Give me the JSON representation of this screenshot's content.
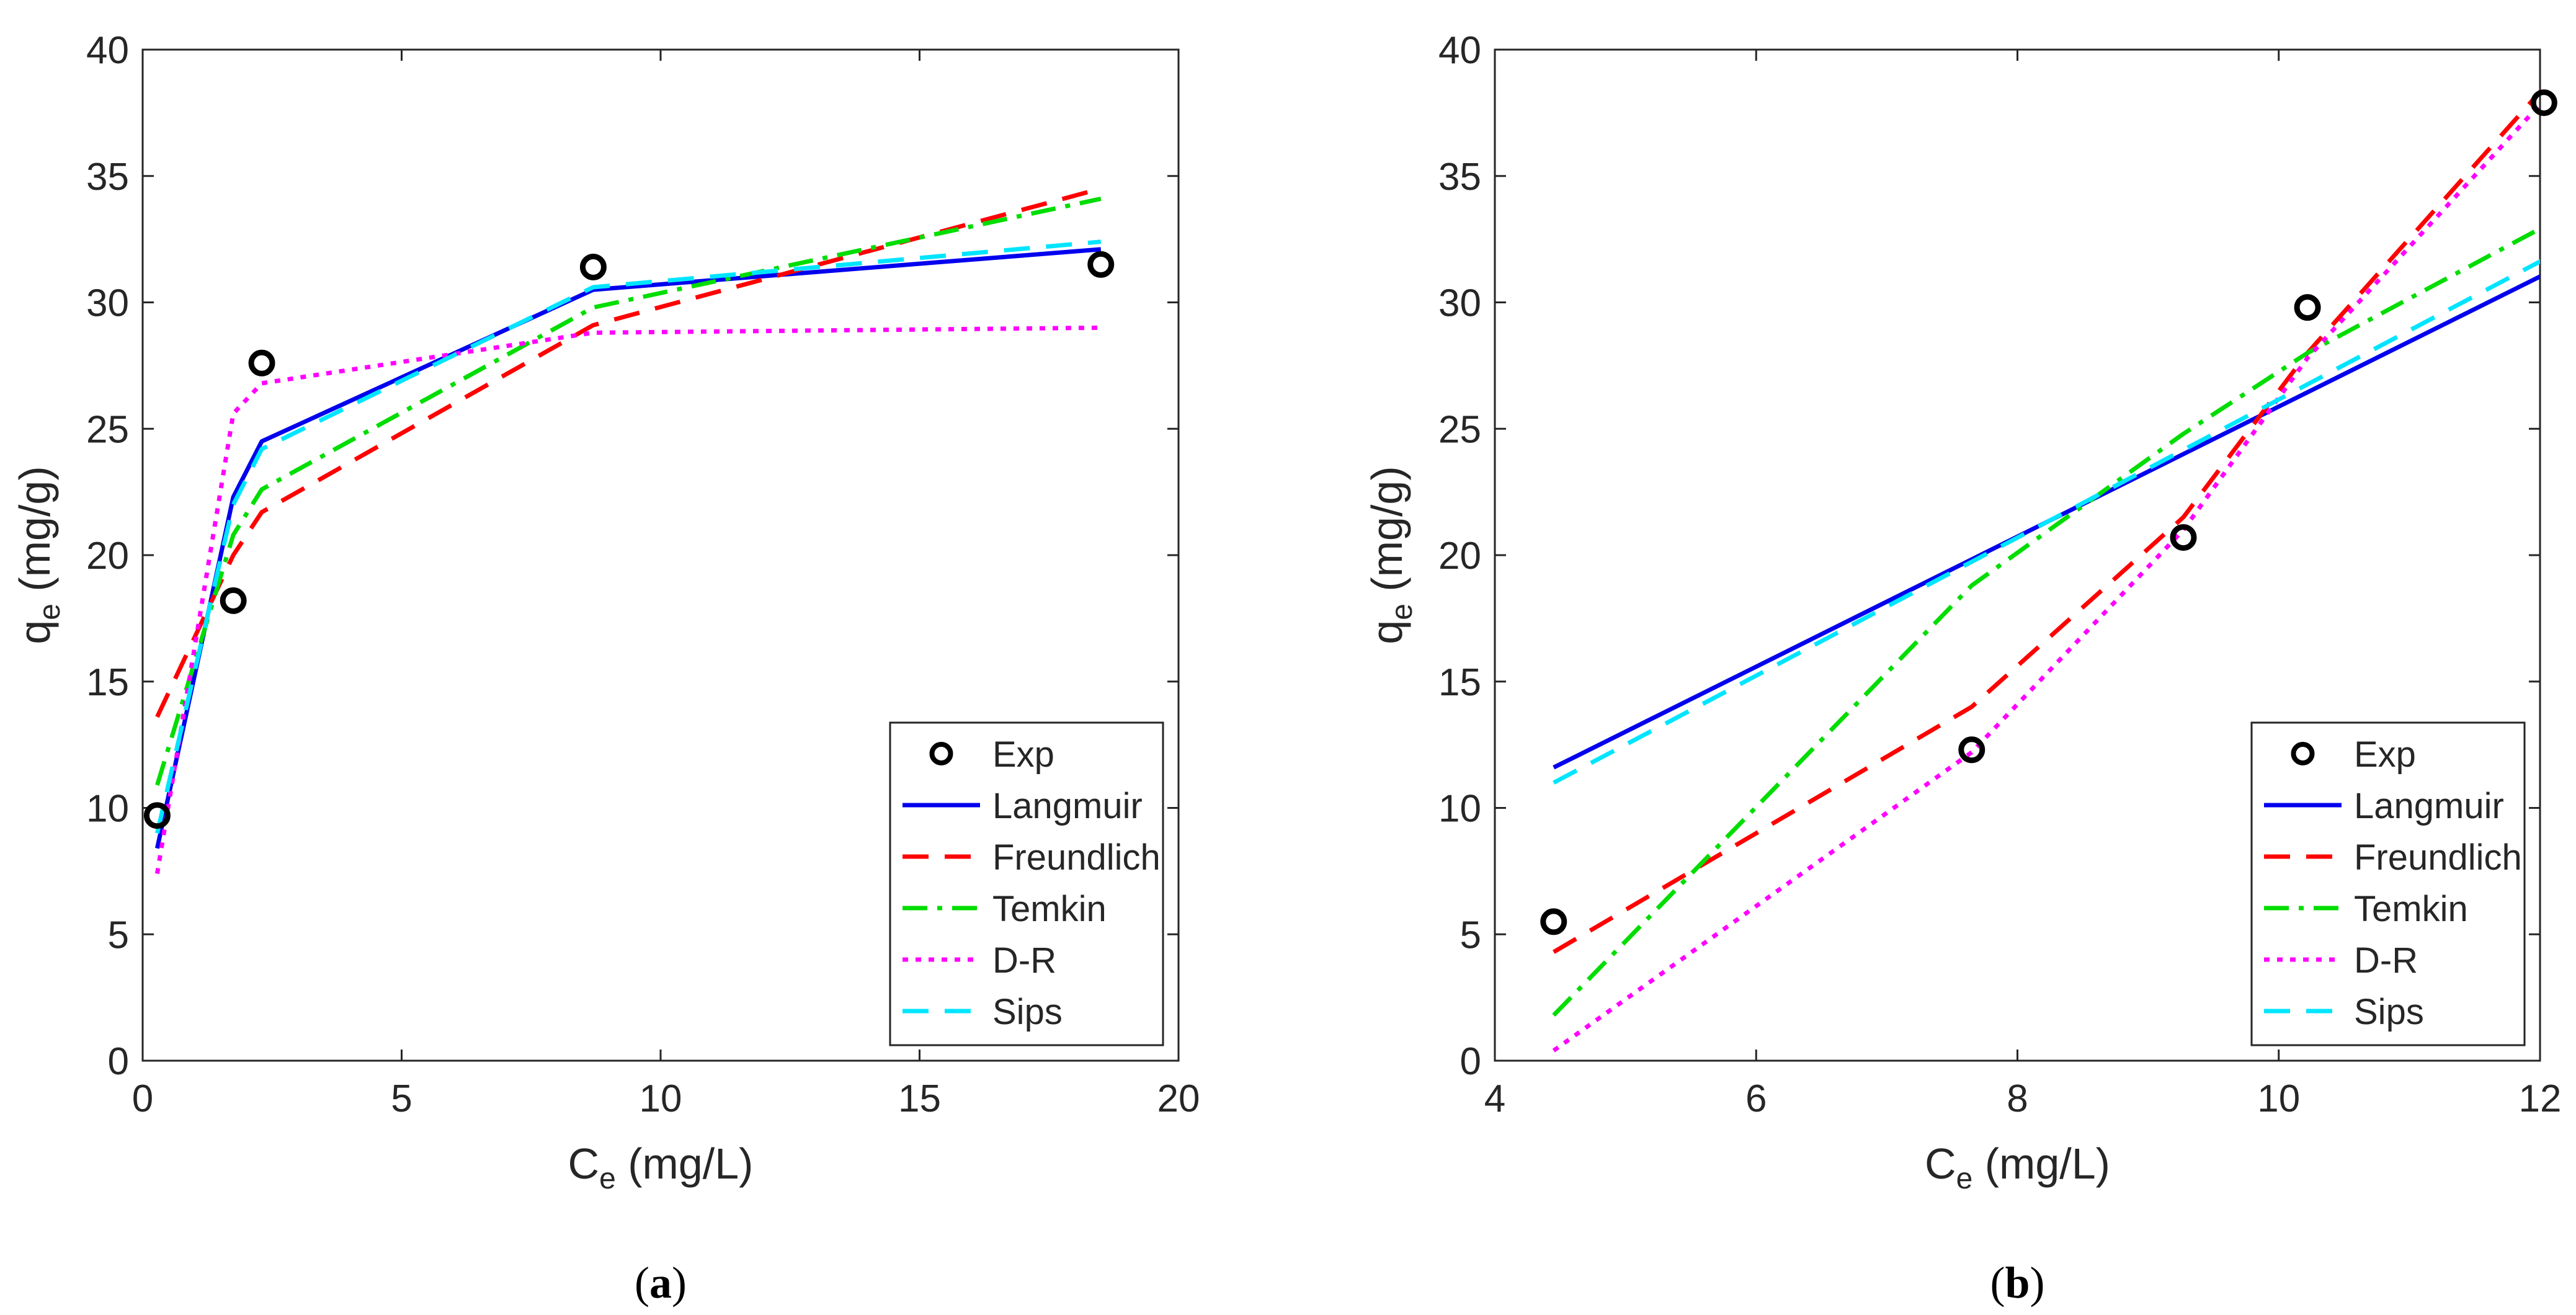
{
  "colors": {
    "Langmuir": "#0000ee",
    "Freundlich": "#ff0000",
    "Temkin": "#00dd00",
    "D-R": "#ff00ff",
    "Sips": "#00e5ff",
    "Exp": "#000000"
  },
  "chart_data": [
    {
      "type": "line",
      "panel_label": {
        "open": "(",
        "letter": "a",
        "close": ")"
      },
      "xlabel": {
        "main": "C",
        "sub": "e",
        "unit": " (mg/L)"
      },
      "ylabel": {
        "main": "q",
        "sub": "e",
        "unit": " (mg/g)"
      },
      "xlim": [
        0,
        20
      ],
      "ylim": [
        0,
        40
      ],
      "xticks": [
        0,
        5,
        10,
        15,
        20
      ],
      "yticks": [
        0,
        5,
        10,
        15,
        20,
        25,
        30,
        35,
        40
      ],
      "legend_position": "bottom-right",
      "legend": [
        "Exp",
        "Langmuir",
        "Freundlich",
        "Temkin",
        "D-R",
        "Sips"
      ],
      "exp_points": {
        "name": "Exp",
        "x": [
          0.28,
          1.75,
          2.3,
          8.7,
          18.5
        ],
        "y": [
          9.7,
          18.2,
          27.6,
          31.4,
          31.5
        ]
      },
      "series": [
        {
          "name": "Langmuir",
          "style": "solid",
          "x": [
            0.28,
            1.75,
            2.3,
            8.7,
            18.5
          ],
          "y": [
            8.4,
            22.3,
            24.5,
            30.5,
            32.1
          ]
        },
        {
          "name": "Freundlich",
          "style": "dash",
          "x": [
            0.28,
            1.75,
            2.3,
            8.7,
            18.5
          ],
          "y": [
            13.6,
            20.0,
            21.7,
            29.1,
            34.5
          ]
        },
        {
          "name": "Temkin",
          "style": "dashdot",
          "x": [
            0.28,
            1.75,
            2.3,
            8.7,
            18.5
          ],
          "y": [
            10.9,
            20.8,
            22.6,
            29.8,
            34.1
          ]
        },
        {
          "name": "D-R",
          "style": "dot",
          "x": [
            0.28,
            1.75,
            2.3,
            8.7,
            18.5
          ],
          "y": [
            7.4,
            25.6,
            26.8,
            28.8,
            29.0
          ]
        },
        {
          "name": "Sips",
          "style": "dash",
          "x": [
            0.28,
            1.75,
            2.3,
            8.7,
            18.5
          ],
          "y": [
            9.0,
            22.0,
            24.2,
            30.6,
            32.4
          ]
        }
      ]
    },
    {
      "type": "line",
      "panel_label": {
        "open": "(",
        "letter": "b",
        "close": ")"
      },
      "xlabel": {
        "main": "C",
        "sub": "e",
        "unit": " (mg/L)"
      },
      "ylabel": {
        "main": "q",
        "sub": "e",
        "unit": " (mg/g)"
      },
      "xlim": [
        4,
        12
      ],
      "ylim": [
        0,
        40
      ],
      "xticks": [
        4,
        6,
        8,
        10,
        12
      ],
      "yticks": [
        0,
        5,
        10,
        15,
        20,
        25,
        30,
        35,
        40
      ],
      "legend_position": "bottom-right",
      "legend": [
        "Exp",
        "Langmuir",
        "Freundlich",
        "Temkin",
        "D-R",
        "Sips"
      ],
      "exp_points": {
        "name": "Exp",
        "x": [
          4.45,
          7.65,
          9.27,
          10.22,
          12.03
        ],
        "y": [
          5.5,
          12.3,
          20.7,
          29.8,
          37.9
        ]
      },
      "series": [
        {
          "name": "Langmuir",
          "style": "solid",
          "x": [
            4.45,
            12.03
          ],
          "y": [
            11.6,
            31.1
          ]
        },
        {
          "name": "Freundlich",
          "style": "dash",
          "x": [
            4.45,
            7.65,
            9.27,
            10.22,
            12.03
          ],
          "y": [
            4.3,
            14.0,
            21.5,
            28.0,
            38.5
          ]
        },
        {
          "name": "Temkin",
          "style": "dashdot",
          "x": [
            4.45,
            7.65,
            9.27,
            10.22,
            12.03
          ],
          "y": [
            1.8,
            18.8,
            24.8,
            28.0,
            33.0
          ]
        },
        {
          "name": "D-R",
          "style": "dot",
          "x": [
            4.45,
            7.65,
            9.27,
            10.22,
            12.03
          ],
          "y": [
            0.4,
            12.2,
            21.0,
            27.8,
            38.0
          ]
        },
        {
          "name": "Sips",
          "style": "dash",
          "x": [
            4.45,
            12.03
          ],
          "y": [
            11.0,
            31.7
          ]
        }
      ]
    }
  ]
}
